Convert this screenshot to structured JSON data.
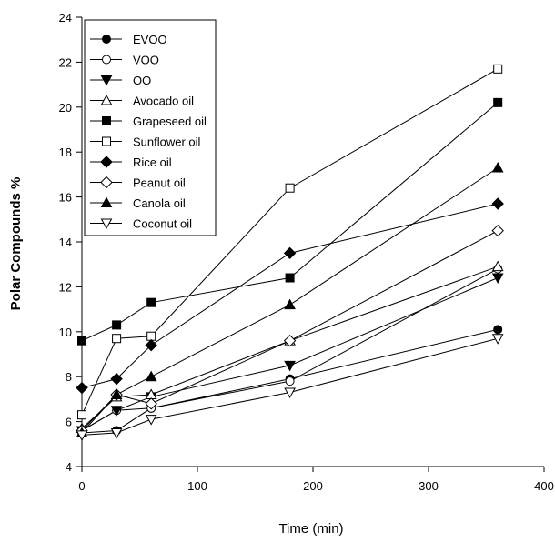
{
  "chart_data": {
    "type": "line",
    "title": "",
    "xlabel": "Time (min)",
    "ylabel": "Polar Compounds %",
    "xlim": [
      0,
      400
    ],
    "ylim": [
      4,
      24
    ],
    "xticks": [
      0,
      100,
      200,
      300,
      400
    ],
    "yticks": [
      4,
      6,
      8,
      10,
      12,
      14,
      16,
      18,
      20,
      22,
      24
    ],
    "grid": false,
    "legend_position": "top-left",
    "x": [
      0,
      30,
      60,
      180,
      360
    ],
    "series": [
      {
        "name": "EVOO",
        "marker": "circle",
        "fill": "filled",
        "values": [
          5.5,
          5.6,
          6.6,
          7.9,
          10.1
        ]
      },
      {
        "name": "VOO",
        "marker": "circle",
        "fill": "open",
        "values": [
          5.6,
          6.5,
          6.6,
          7.8,
          12.8
        ]
      },
      {
        "name": "OO",
        "marker": "triangle-down",
        "fill": "filled",
        "values": [
          5.6,
          6.5,
          7.1,
          8.5,
          12.4
        ]
      },
      {
        "name": "Avocado oil",
        "marker": "triangle-up",
        "fill": "open",
        "values": [
          5.7,
          7.1,
          7.2,
          9.6,
          12.9
        ]
      },
      {
        "name": "Grapeseed oil",
        "marker": "square",
        "fill": "filled",
        "values": [
          9.6,
          10.3,
          11.3,
          12.4,
          20.2
        ]
      },
      {
        "name": "Sunflower oil",
        "marker": "square",
        "fill": "open",
        "values": [
          6.3,
          9.7,
          9.8,
          16.4,
          21.7
        ]
      },
      {
        "name": "Rice oil",
        "marker": "diamond",
        "fill": "filled",
        "values": [
          7.5,
          7.9,
          9.4,
          13.5,
          15.7
        ]
      },
      {
        "name": "Peanut oil",
        "marker": "diamond",
        "fill": "open",
        "values": [
          5.6,
          7.2,
          6.8,
          9.6,
          14.5
        ]
      },
      {
        "name": "Canola oil",
        "marker": "triangle-up",
        "fill": "filled",
        "values": [
          5.5,
          7.2,
          8.0,
          11.2,
          17.3
        ]
      },
      {
        "name": "Coconut oil",
        "marker": "triangle-down",
        "fill": "open",
        "values": [
          5.4,
          5.5,
          6.1,
          7.3,
          9.7
        ]
      }
    ]
  }
}
